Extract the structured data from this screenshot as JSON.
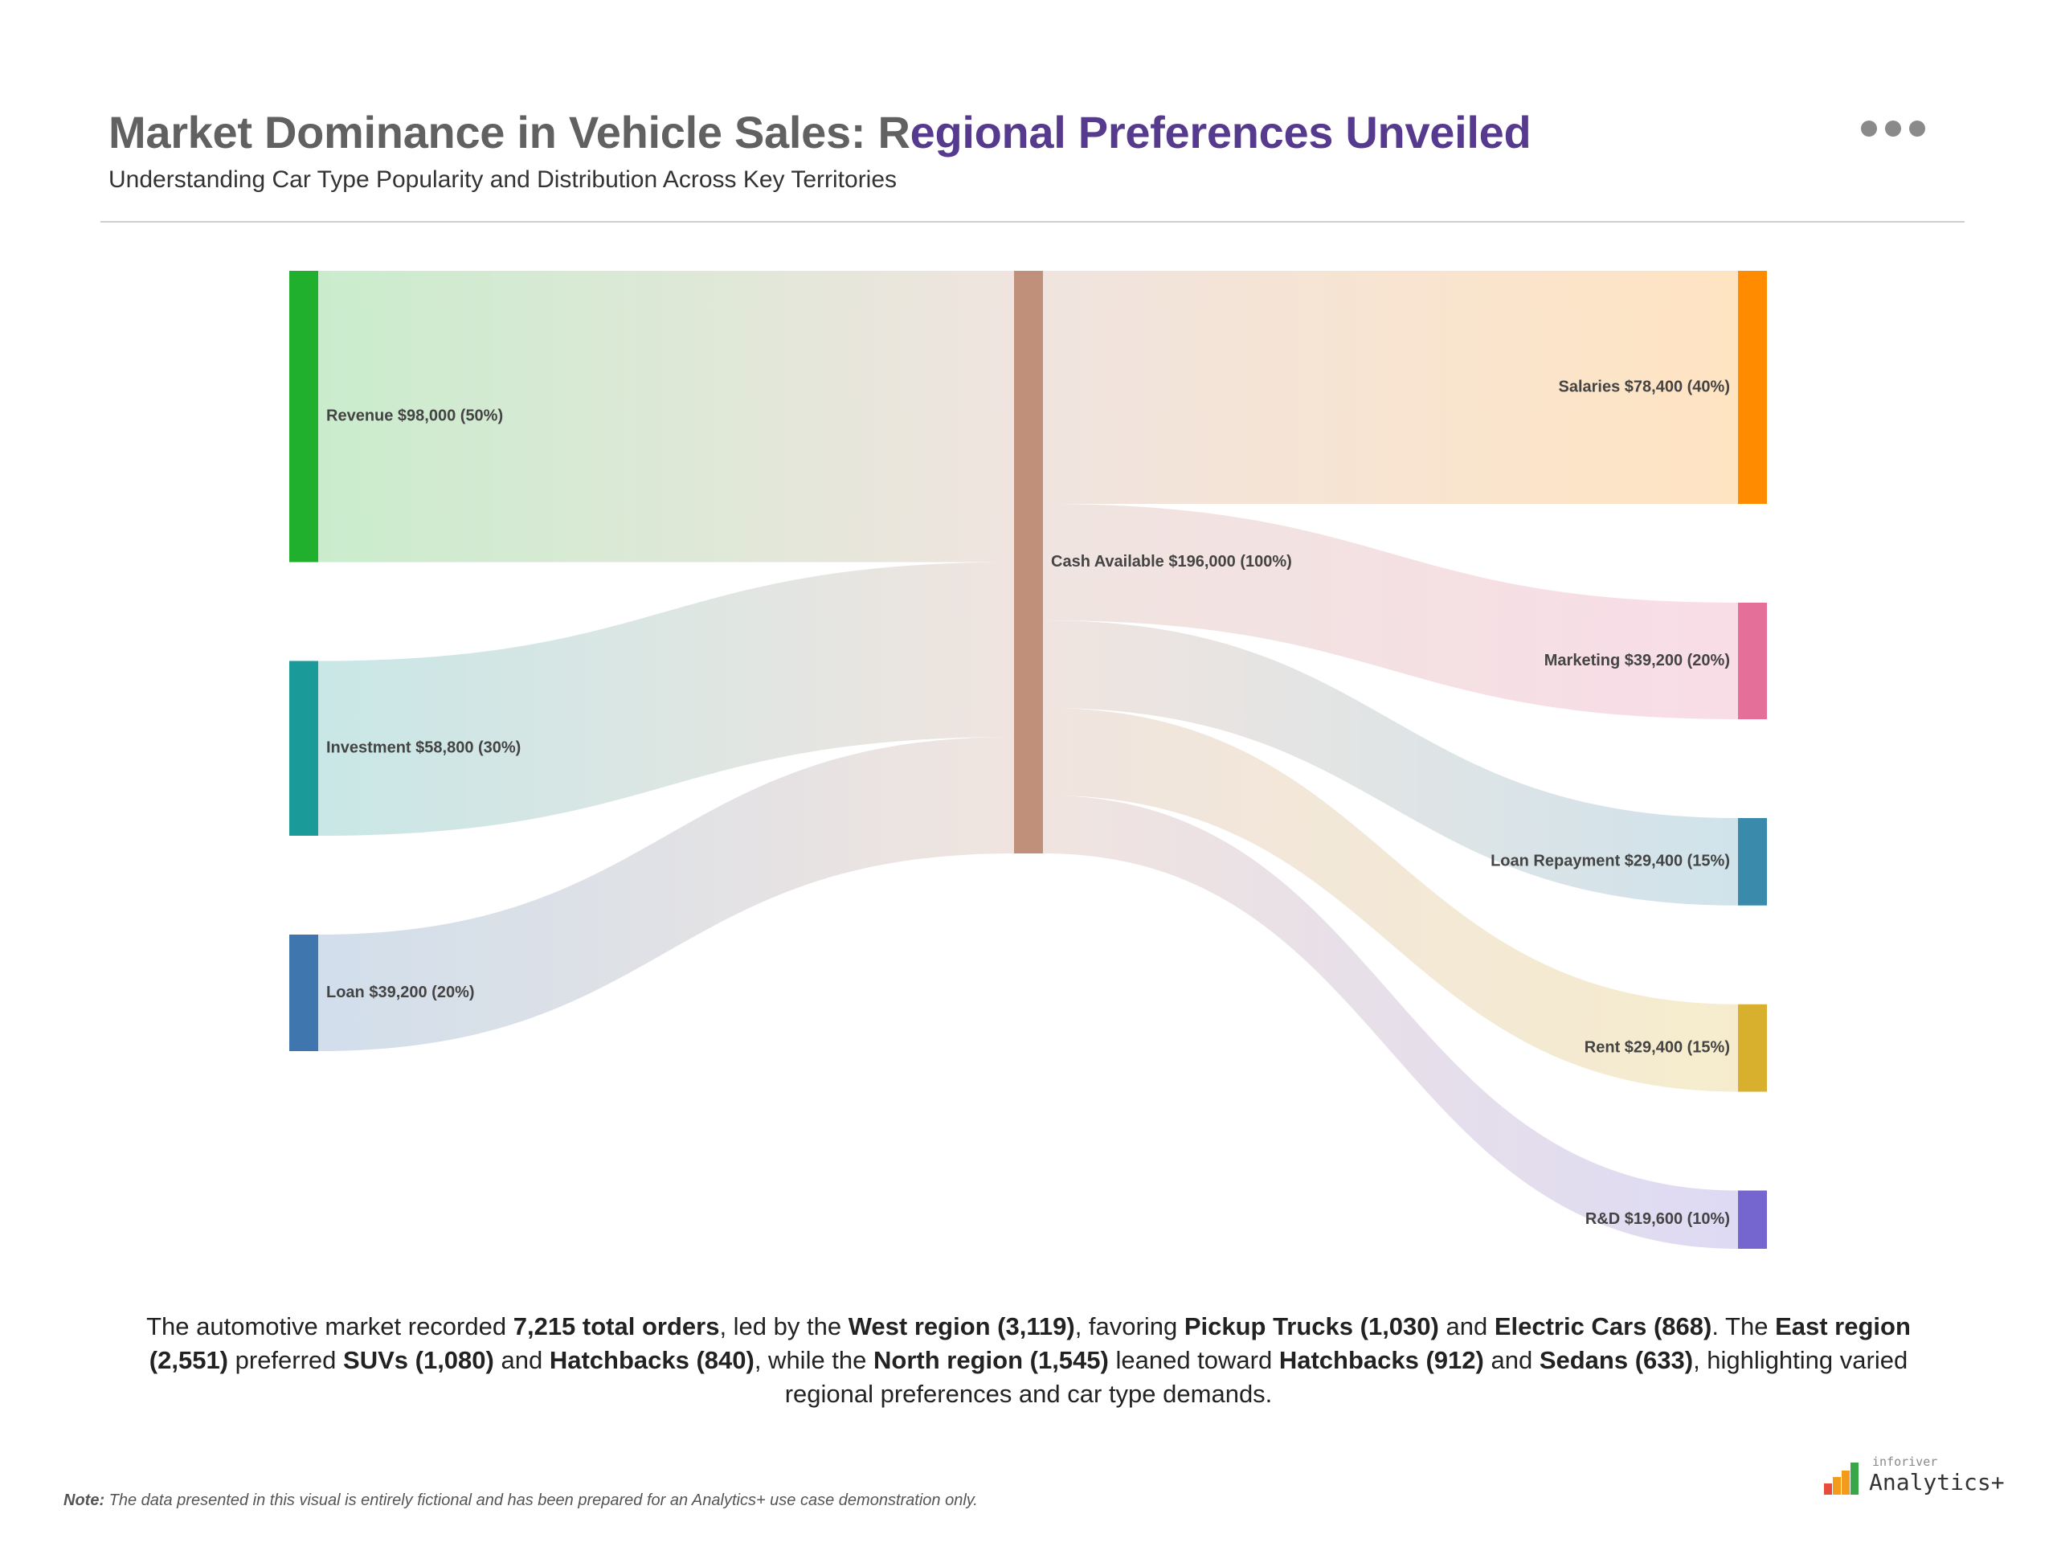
{
  "header": {
    "title_part1": "Market Dominance in Vehicle Sales: R",
    "title_part2": "egional Preferences Unveiled",
    "subtitle": "Understanding Car Type Popularity and Distribution Across Key Territories"
  },
  "menu": {
    "icon": "more-horizontal-icon"
  },
  "colors": {
    "title_gray": "#616161",
    "title_purple": "#553a8e",
    "Revenue": "#21b02e",
    "Investment": "#1a9a98",
    "Loan": "#3f76ad",
    "Cash Available": "#c0907b",
    "Salaries": "#ff8c00",
    "Marketing": "#e4709a",
    "Loan Repayment": "#3a8aac",
    "Rent": "#d9b02e",
    "R&D": "#7565cf"
  },
  "chart_data": {
    "type": "sankey",
    "nodes": [
      {
        "name": "Revenue",
        "value": 98000,
        "percent": 50,
        "label": "Revenue $98,000 (50%)"
      },
      {
        "name": "Investment",
        "value": 58800,
        "percent": 30,
        "label": "Investment $58,800 (30%)"
      },
      {
        "name": "Loan",
        "value": 39200,
        "percent": 20,
        "label": "Loan $39,200 (20%)"
      },
      {
        "name": "Cash Available",
        "value": 196000,
        "percent": 100,
        "label": "Cash Available $196,000 (100%)"
      },
      {
        "name": "Salaries",
        "value": 78400,
        "percent": 40,
        "label": "Salaries $78,400 (40%)"
      },
      {
        "name": "Marketing",
        "value": 39200,
        "percent": 20,
        "label": "Marketing $39,200 (20%)"
      },
      {
        "name": "Loan Repayment",
        "value": 29400,
        "percent": 15,
        "label": "Loan Repayment $29,400 (15%)"
      },
      {
        "name": "Rent",
        "value": 29400,
        "percent": 15,
        "label": "Rent $29,400 (15%)"
      },
      {
        "name": "R&D",
        "value": 19600,
        "percent": 10,
        "label": "R&D $19,600 (10%)"
      }
    ],
    "links": [
      {
        "source": "Revenue",
        "target": "Cash Available",
        "value": 98000
      },
      {
        "source": "Investment",
        "target": "Cash Available",
        "value": 58800
      },
      {
        "source": "Loan",
        "target": "Cash Available",
        "value": 39200
      },
      {
        "source": "Cash Available",
        "target": "Salaries",
        "value": 78400
      },
      {
        "source": "Cash Available",
        "target": "Marketing",
        "value": 39200
      },
      {
        "source": "Cash Available",
        "target": "Loan Repayment",
        "value": 29400
      },
      {
        "source": "Cash Available",
        "target": "Rent",
        "value": 29400
      },
      {
        "source": "Cash Available",
        "target": "R&D",
        "value": 19600
      }
    ]
  },
  "summary": {
    "s1": "The automotive market recorded ",
    "b1": "7,215 total orders",
    "s2": ", led by the ",
    "b2": "West region (3,119)",
    "s3": ", favoring ",
    "b3": "Pickup Trucks (1,030)",
    "s4": " and ",
    "b4": "Electric Cars (868)",
    "s5": ". The ",
    "b5": "East region (2,551)",
    "s6": " preferred ",
    "b6": "SUVs (1,080)",
    "s7": " and ",
    "b7": "Hatchbacks (840)",
    "s8": ", while the ",
    "b8": "North region (1,545)",
    "s9": " leaned toward ",
    "b9": "Hatchbacks (912)",
    "s10": " and ",
    "b10": "Sedans (633)",
    "s11": ", highlighting varied regional preferences and car type demands."
  },
  "note": {
    "label": "Note:",
    "text": " The data presented in this visual is entirely fictional and has been prepared for an Analytics+ use case demonstration only."
  },
  "logo": {
    "top": "inforiver",
    "brand": "Analytics+"
  }
}
